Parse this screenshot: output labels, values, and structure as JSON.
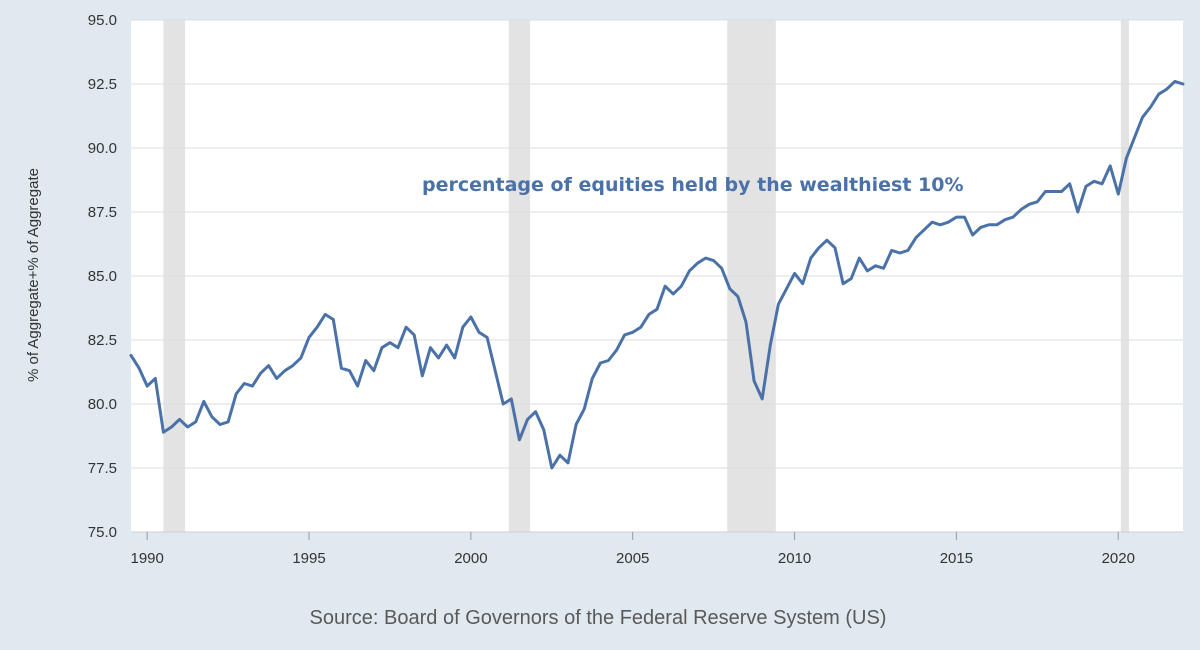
{
  "chart_data": {
    "type": "line",
    "title": "",
    "xlabel": "",
    "ylabel": "% of Aggregate+% of Aggregate",
    "annotation": "percentage of equities held by the wealthiest 10%",
    "source": "Source: Board of Governors of the Federal Reserve System (US)",
    "xlim": [
      1989.5,
      2022.0
    ],
    "ylim": [
      75.0,
      95.0
    ],
    "x_ticks": [
      1990,
      1995,
      2000,
      2005,
      2010,
      2015,
      2020
    ],
    "y_ticks": [
      "75.0",
      "77.5",
      "80.0",
      "82.5",
      "85.0",
      "87.5",
      "90.0",
      "92.5",
      "95.0"
    ],
    "grid": true,
    "line_color": "#4a72a8",
    "recession_color": "#e3e3e3",
    "recessions": [
      [
        1990.5,
        1991.17
      ],
      [
        2001.17,
        2001.83
      ],
      [
        2007.92,
        2009.42
      ],
      [
        2020.08,
        2020.33
      ]
    ],
    "series": [
      {
        "x": [
          1989.5,
          1989.75,
          1990.0,
          1990.25,
          1990.5,
          1990.75,
          1991.0,
          1991.25,
          1991.5,
          1991.75,
          1992.0,
          1992.25,
          1992.5,
          1992.75,
          1993.0,
          1993.25,
          1993.5,
          1993.75,
          1994.0,
          1994.25,
          1994.5,
          1994.75,
          1995.0,
          1995.25,
          1995.5,
          1995.75,
          1996.0,
          1996.25,
          1996.5,
          1996.75,
          1997.0,
          1997.25,
          1997.5,
          1997.75,
          1998.0,
          1998.25,
          1998.5,
          1998.75,
          1999.0,
          1999.25,
          1999.5,
          1999.75,
          2000.0,
          2000.25,
          2000.5,
          2000.75,
          2001.0,
          2001.25,
          2001.5,
          2001.75,
          2002.0,
          2002.25,
          2002.5,
          2002.75,
          2003.0,
          2003.25,
          2003.5,
          2003.75,
          2004.0,
          2004.25,
          2004.5,
          2004.75,
          2005.0,
          2005.25,
          2005.5,
          2005.75,
          2006.0,
          2006.25,
          2006.5,
          2006.75,
          2007.0,
          2007.25,
          2007.5,
          2007.75,
          2008.0,
          2008.25,
          2008.5,
          2008.75,
          2009.0,
          2009.25,
          2009.5,
          2009.75,
          2010.0,
          2010.25,
          2010.5,
          2010.75,
          2011.0,
          2011.25,
          2011.5,
          2011.75,
          2012.0,
          2012.25,
          2012.5,
          2012.75,
          2013.0,
          2013.25,
          2013.5,
          2013.75,
          2014.0,
          2014.25,
          2014.5,
          2014.75,
          2015.0,
          2015.25,
          2015.5,
          2015.75,
          2016.0,
          2016.25,
          2016.5,
          2016.75,
          2017.0,
          2017.25,
          2017.5,
          2017.75,
          2018.0,
          2018.25,
          2018.5,
          2018.75,
          2019.0,
          2019.25,
          2019.5,
          2019.75,
          2020.0,
          2020.25,
          2020.5,
          2020.75,
          2021.0,
          2021.25,
          2021.5,
          2021.75,
          2022.0
        ],
        "y": [
          81.9,
          81.4,
          80.7,
          81.0,
          78.9,
          79.1,
          79.4,
          79.1,
          79.3,
          80.1,
          79.5,
          79.2,
          79.3,
          80.4,
          80.8,
          80.7,
          81.2,
          81.5,
          81.0,
          81.3,
          81.5,
          81.8,
          82.6,
          83.0,
          83.5,
          83.3,
          81.4,
          81.3,
          80.7,
          81.7,
          81.3,
          82.2,
          82.4,
          82.2,
          83.0,
          82.7,
          81.1,
          82.2,
          81.8,
          82.3,
          81.8,
          83.0,
          83.4,
          82.8,
          82.6,
          81.3,
          80.0,
          80.2,
          78.6,
          79.4,
          79.7,
          79.0,
          77.5,
          78.0,
          77.7,
          79.2,
          79.8,
          81.0,
          81.6,
          81.7,
          82.1,
          82.7,
          82.8,
          83.0,
          83.5,
          83.7,
          84.6,
          84.3,
          84.6,
          85.2,
          85.5,
          85.7,
          85.6,
          85.3,
          84.5,
          84.2,
          83.2,
          80.9,
          80.2,
          82.3,
          83.9,
          84.5,
          85.1,
          84.7,
          85.7,
          86.1,
          86.4,
          86.1,
          84.7,
          84.9,
          85.7,
          85.2,
          85.4,
          85.3,
          86.0,
          85.9,
          86.0,
          86.5,
          86.8,
          87.1,
          87.0,
          87.1,
          87.3,
          87.3,
          86.6,
          86.9,
          87.0,
          87.0,
          87.2,
          87.3,
          87.6,
          87.8,
          87.9,
          88.3,
          88.3,
          88.3,
          88.6,
          87.5,
          88.5,
          88.7,
          88.6,
          89.3,
          88.2,
          89.6,
          90.4,
          91.2,
          91.6,
          92.1,
          92.3,
          92.6,
          92.5
        ]
      }
    ]
  }
}
